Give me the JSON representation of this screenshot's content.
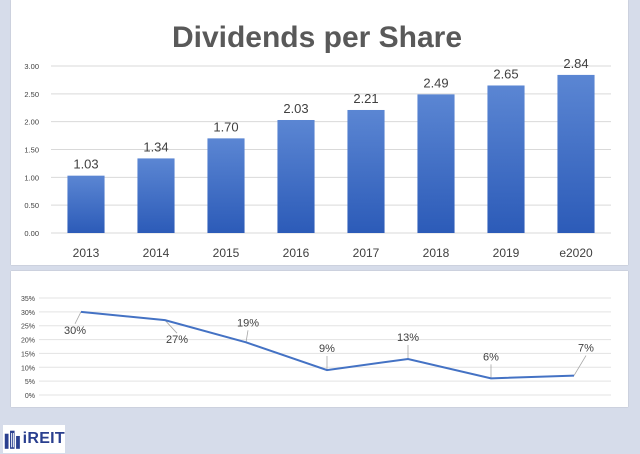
{
  "chart_data": [
    {
      "type": "bar",
      "title": "Dividends per Share",
      "categories": [
        "2013",
        "2014",
        "2015",
        "2016",
        "2017",
        "2018",
        "2019",
        "e2020"
      ],
      "values": [
        1.03,
        1.34,
        1.7,
        2.03,
        2.21,
        2.49,
        2.65,
        2.84
      ],
      "data_labels": [
        "1.03",
        "1.34",
        "1.70",
        "2.03",
        "2.21",
        "2.49",
        "2.65",
        "2.84"
      ],
      "yticks": [
        "0.00",
        "0.50",
        "1.00",
        "1.50",
        "2.00",
        "2.50",
        "3.00"
      ],
      "ylim": [
        0,
        3
      ],
      "grid": true,
      "bar_color": "#4472c4"
    },
    {
      "type": "line",
      "values": [
        30,
        27,
        19,
        9,
        13,
        6,
        7
      ],
      "data_labels": [
        "30%",
        "27%",
        "19%",
        "9%",
        "13%",
        "6%",
        "7%"
      ],
      "yticks": [
        "0%",
        "5%",
        "10%",
        "15%",
        "20%",
        "25%",
        "30%",
        "35%"
      ],
      "ylim": [
        0,
        35
      ],
      "grid": true,
      "line_color": "#4472c4"
    }
  ],
  "logo": {
    "text": "iREIT"
  }
}
